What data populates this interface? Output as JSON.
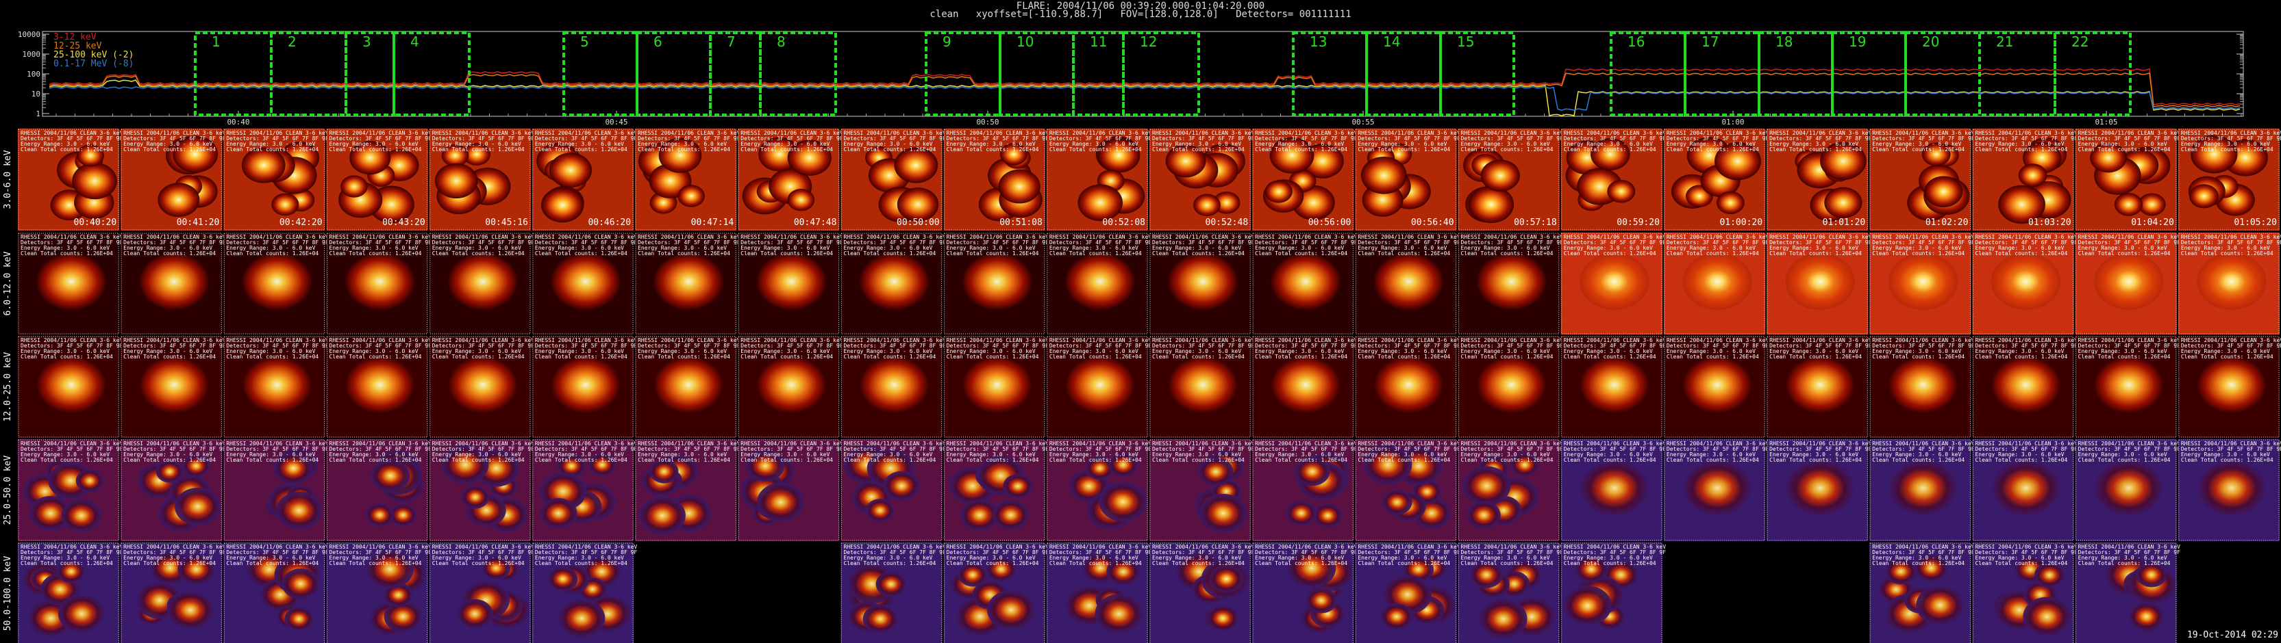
{
  "header": {
    "line1": "FLARE: 2004/11/06 00:39:20.000-01:04:20.000",
    "line2": "clean   xyoffset=[-110.9,88.7]   FOV=[128.0,128.0]   Detectors= 001111111"
  },
  "lightcurve": {
    "legend": [
      {
        "label": "3-12 keV",
        "color": "#d81e1e"
      },
      {
        "label": "12-25 keV",
        "color": "#e07a14"
      },
      {
        "label": "25-100 keV (-2)",
        "color": "#f0e040"
      },
      {
        "label": "0.1-17 MeV (-8)",
        "color": "#2e7ad8"
      }
    ],
    "y_ticks": [
      "10000",
      "1000",
      "100",
      "10",
      "1"
    ],
    "x_ticks": [
      "00:40",
      "00:45",
      "00:50",
      "00:55",
      "01:00",
      "01:05"
    ],
    "interval_numbers": [
      "1",
      "2",
      "3",
      "4",
      "5",
      "6",
      "7",
      "8",
      "9",
      "10",
      "11",
      "12",
      "13",
      "14",
      "15",
      "16",
      "17",
      "18",
      "19",
      "20",
      "21",
      "22"
    ],
    "box_color": "#22dd22"
  },
  "grid": {
    "row_labels": [
      "3.0-6.0 keV",
      "6.0-12.0 keV",
      "12.0-25.0 keV",
      "25.0-50.0 keV",
      "50.0-100.0 keV"
    ],
    "column_times": [
      "00:40:20",
      "00:41:20",
      "00:42:20",
      "00:43:20",
      "00:45:16",
      "00:46:20",
      "00:47:14",
      "00:47:48",
      "00:50:00",
      "00:51:08",
      "00:52:08",
      "00:52:48",
      "00:56:00",
      "00:56:40",
      "00:57:18",
      "00:59:20",
      "01:00:20",
      "01:01:20",
      "01:02:20",
      "01:03:20",
      "01:04:20",
      "01:05:20"
    ],
    "cell_caption_lines": [
      "RHESSI 2004/11/06 CLEAN 3-6 keV",
      "Detectors: 3F 4F 5F 6F 7F 8F 9F",
      "Energy Range: 3.0 - 6.0 keV",
      "Clean   Total counts: 1.26E+04"
    ],
    "empty_cells": {
      "4": [
        6,
        7,
        16,
        17,
        21
      ]
    },
    "footer_date": "19-Oct-2014 02:29"
  }
}
